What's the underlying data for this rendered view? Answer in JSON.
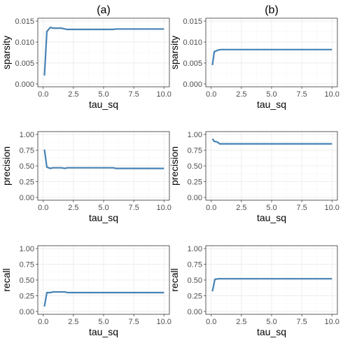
{
  "figure": {
    "column_titles": [
      "(a)",
      "(b)"
    ]
  },
  "colors": {
    "line": "#4682b4",
    "grid": "#e3e3e3",
    "frame": "#333333"
  },
  "chart_data": [
    {
      "type": "line",
      "title": "(a)",
      "xlabel": "tau_sq",
      "ylabel": "sparsity",
      "xlim": [
        0,
        10
      ],
      "ylim": [
        0,
        0.015
      ],
      "grid": true,
      "xticks": [
        "0.0",
        "2.5",
        "5.0",
        "7.5",
        "10.0"
      ],
      "yticks": [
        "0.000",
        "0.005",
        "0.010",
        "0.015"
      ],
      "x": [
        0.1,
        0.3,
        0.6,
        0.8,
        1.0,
        1.2,
        1.5,
        1.8,
        2.0,
        5.8,
        6.0,
        10.0
      ],
      "y": [
        0.002,
        0.0125,
        0.0135,
        0.0133,
        0.0133,
        0.0133,
        0.0133,
        0.0131,
        0.013,
        0.013,
        0.0131,
        0.0131
      ]
    },
    {
      "type": "line",
      "title": "(b)",
      "xlabel": "tau_sq",
      "ylabel": "sparsity",
      "xlim": [
        0,
        10
      ],
      "ylim": [
        0,
        0.015
      ],
      "grid": true,
      "xticks": [
        "0.0",
        "2.5",
        "5.0",
        "7.5",
        "10.0"
      ],
      "yticks": [
        "0.000",
        "0.005",
        "0.010",
        "0.015"
      ],
      "x": [
        0.1,
        0.25,
        0.6,
        0.8,
        10.0
      ],
      "y": [
        0.0045,
        0.0077,
        0.0081,
        0.0082,
        0.0082
      ]
    },
    {
      "type": "line",
      "title": "",
      "xlabel": "tau_sq",
      "ylabel": "precision",
      "xlim": [
        0,
        10
      ],
      "ylim": [
        0,
        1
      ],
      "grid": true,
      "xticks": [
        "0.0",
        "2.5",
        "5.0",
        "7.5",
        "10.0"
      ],
      "yticks": [
        "0.00",
        "0.25",
        "0.50",
        "0.75",
        "1.00"
      ],
      "x": [
        0.1,
        0.3,
        0.6,
        0.8,
        1.0,
        1.5,
        1.8,
        2.0,
        5.8,
        6.0,
        10.0
      ],
      "y": [
        0.76,
        0.48,
        0.46,
        0.47,
        0.47,
        0.47,
        0.46,
        0.47,
        0.47,
        0.46,
        0.46
      ]
    },
    {
      "type": "line",
      "title": "",
      "xlabel": "tau_sq",
      "ylabel": "precision",
      "xlim": [
        0,
        10
      ],
      "ylim": [
        0,
        1
      ],
      "grid": true,
      "xticks": [
        "0.0",
        "2.5",
        "5.0",
        "7.5",
        "10.0"
      ],
      "yticks": [
        "0.00",
        "0.25",
        "0.50",
        "0.75",
        "1.00"
      ],
      "x": [
        0.1,
        0.25,
        0.5,
        0.7,
        10.0
      ],
      "y": [
        0.93,
        0.89,
        0.88,
        0.85,
        0.85
      ]
    },
    {
      "type": "line",
      "title": "",
      "xlabel": "tau_sq",
      "ylabel": "recall",
      "xlim": [
        0,
        10
      ],
      "ylim": [
        0,
        1
      ],
      "grid": true,
      "xticks": [
        "0.0",
        "2.5",
        "5.0",
        "7.5",
        "10.0"
      ],
      "yticks": [
        "0.00",
        "0.25",
        "0.50",
        "0.75",
        "1.00"
      ],
      "x": [
        0.1,
        0.3,
        0.6,
        0.8,
        1.8,
        2.0,
        10.0
      ],
      "y": [
        0.08,
        0.3,
        0.3,
        0.31,
        0.31,
        0.3,
        0.3
      ]
    },
    {
      "type": "line",
      "title": "",
      "xlabel": "tau_sq",
      "ylabel": "recall",
      "xlim": [
        0,
        10
      ],
      "ylim": [
        0,
        1
      ],
      "grid": true,
      "xticks": [
        "0.0",
        "2.5",
        "5.0",
        "7.5",
        "10.0"
      ],
      "yticks": [
        "0.00",
        "0.25",
        "0.50",
        "0.75",
        "1.00"
      ],
      "x": [
        0.1,
        0.3,
        0.6,
        10.0
      ],
      "y": [
        0.32,
        0.51,
        0.52,
        0.52
      ]
    }
  ]
}
